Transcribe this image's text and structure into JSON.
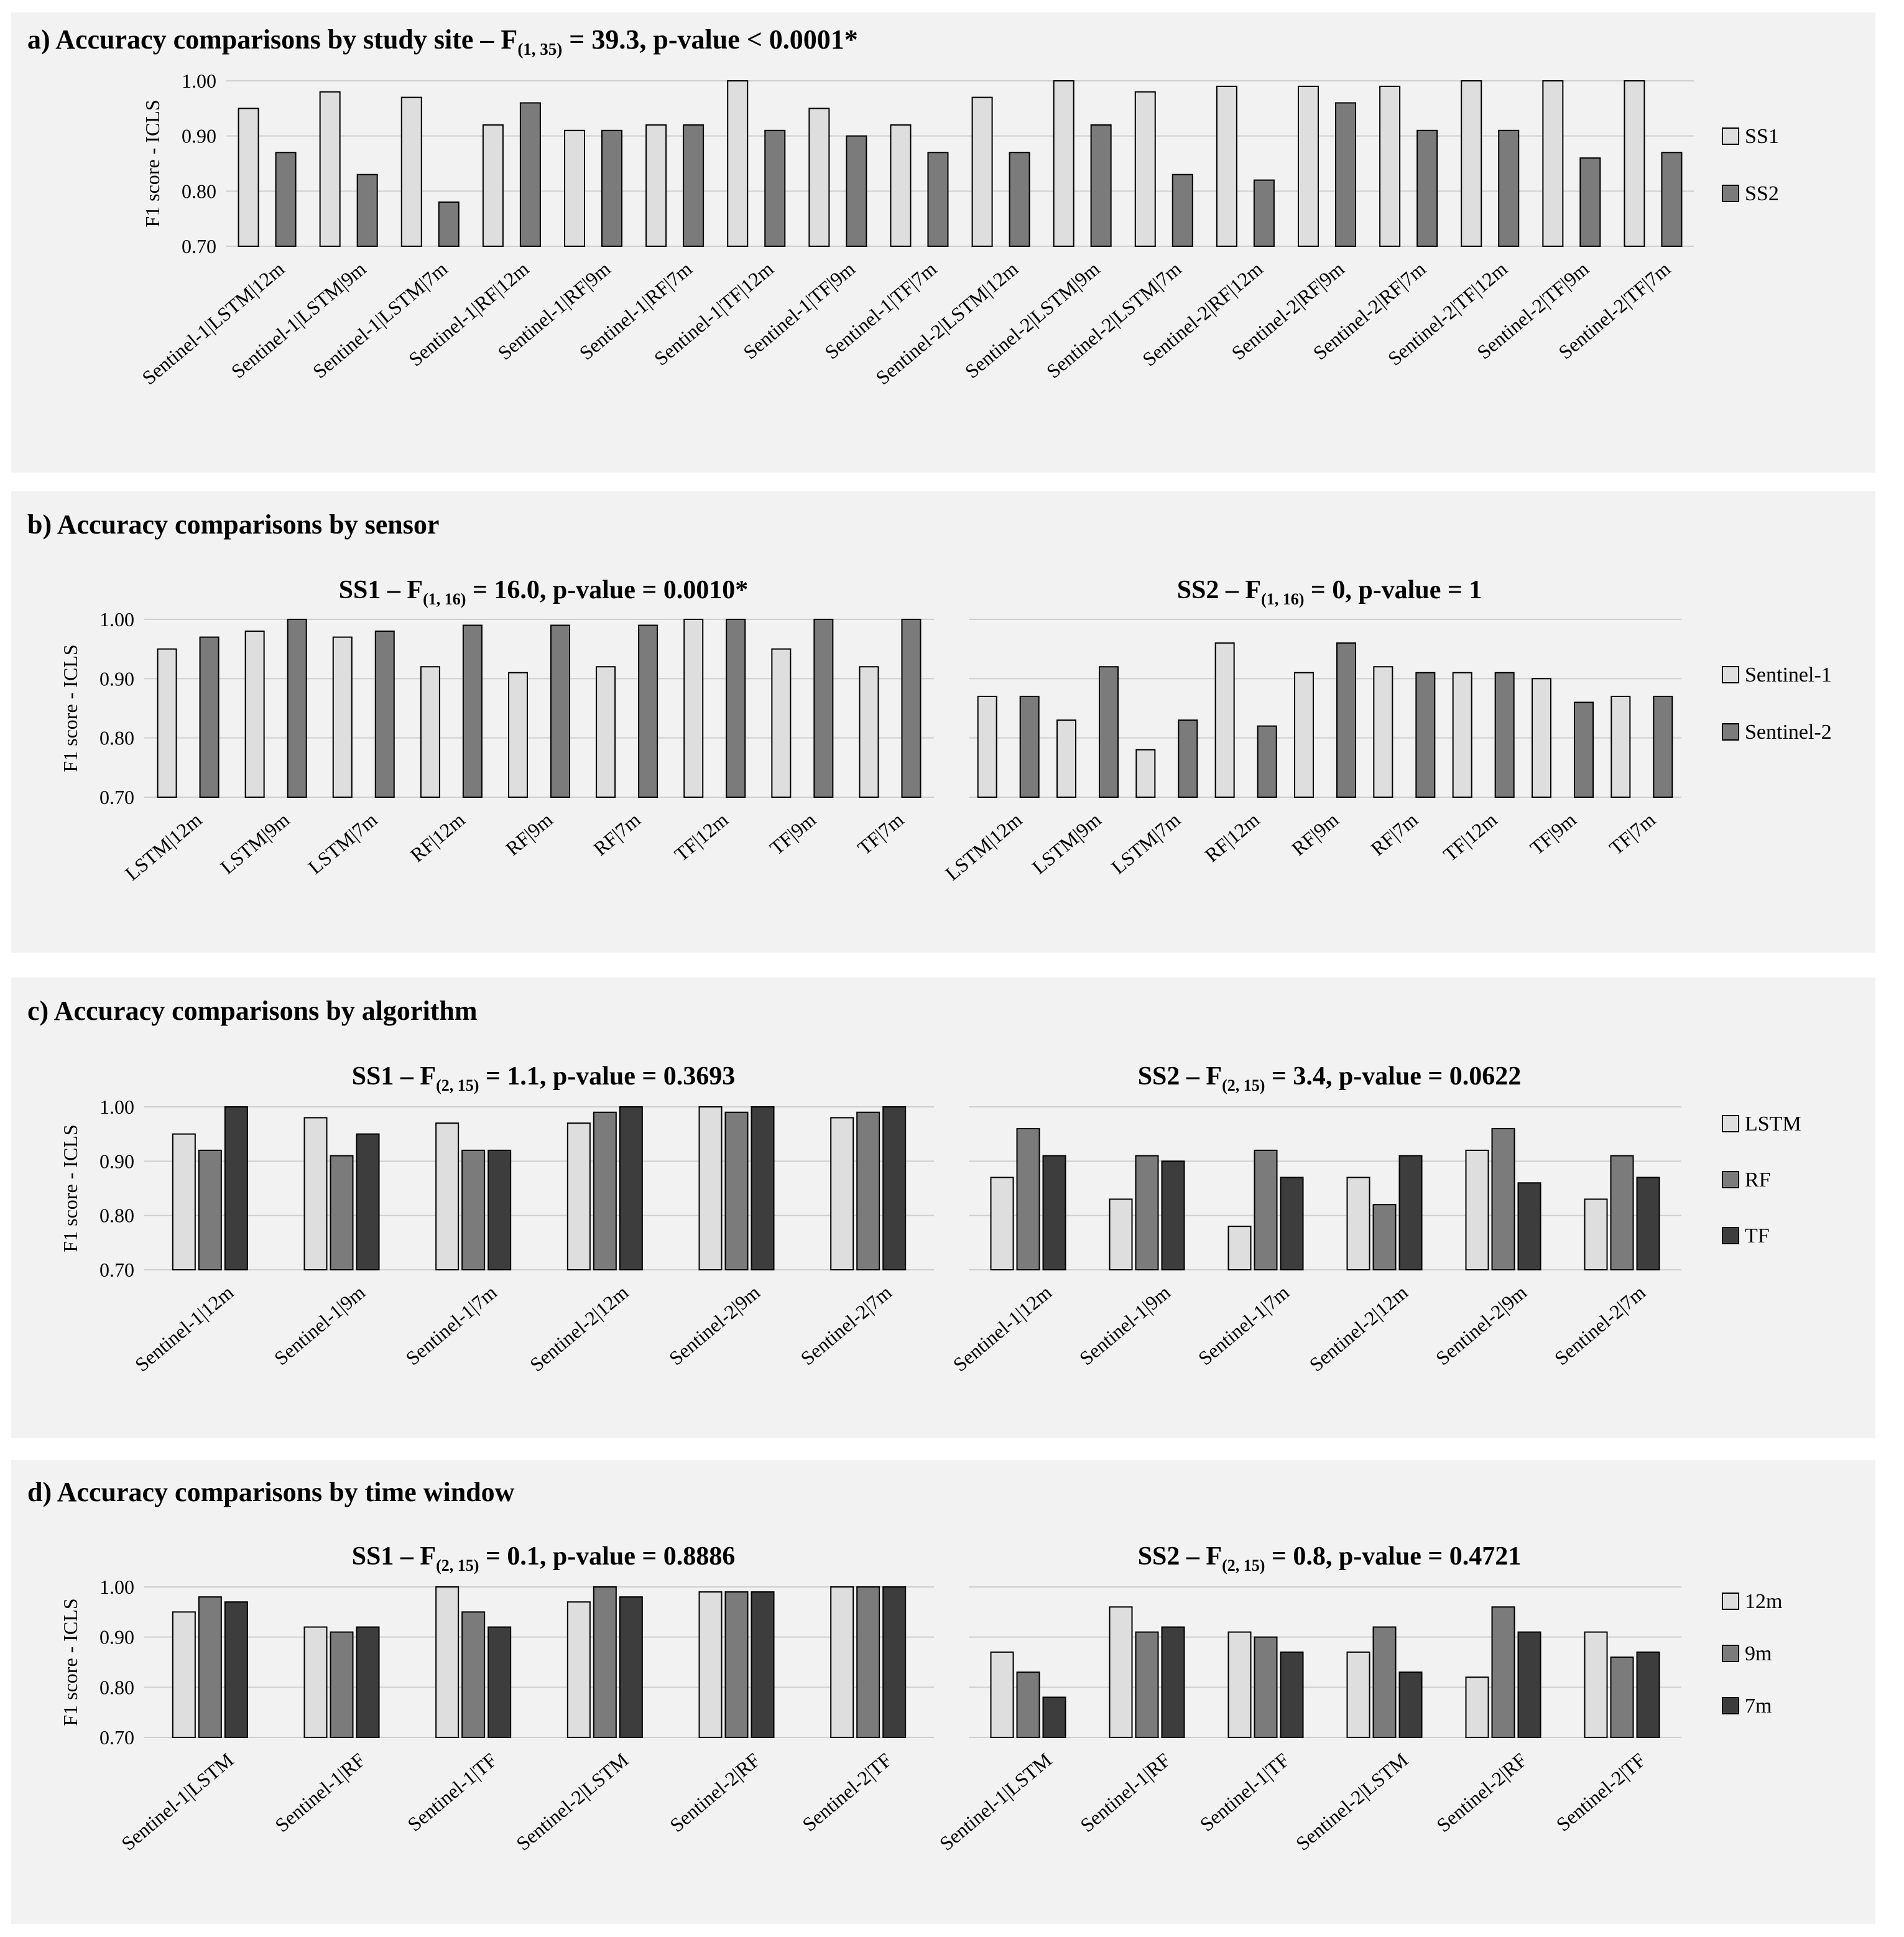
{
  "chart_data": [
    {
      "type": "bar",
      "title_prefix": "a) Accuracy comparisons by study site – F",
      "title_sub": "(1, 35)",
      "title_suffix": " = 39.3, p-value < 0.0001*",
      "ylabel": "F1 score - ICLS",
      "ylim": [
        0.7,
        1.0
      ],
      "yticks": [
        "1.00",
        "0.90",
        "0.80",
        "0.70"
      ],
      "categories": [
        "Sentinel-1|LSTM|12m",
        "Sentinel-1|LSTM|9m",
        "Sentinel-1|LSTM|7m",
        "Sentinel-1|RF|12m",
        "Sentinel-1|RF|9m",
        "Sentinel-1|RF|7m",
        "Sentinel-1|TF|12m",
        "Sentinel-1|TF|9m",
        "Sentinel-1|TF|7m",
        "Sentinel-2|LSTM|12m",
        "Sentinel-2|LSTM|9m",
        "Sentinel-2|LSTM|7m",
        "Sentinel-2|RF|12m",
        "Sentinel-2|RF|9m",
        "Sentinel-2|RF|7m",
        "Sentinel-2|TF|12m",
        "Sentinel-2|TF|9m",
        "Sentinel-2|TF|7m"
      ],
      "series": [
        {
          "name": "SS1",
          "color": "#dedede",
          "values": [
            0.95,
            0.98,
            0.97,
            0.92,
            0.91,
            0.92,
            1.0,
            0.95,
            0.92,
            0.97,
            1.0,
            0.98,
            0.99,
            0.99,
            0.99,
            1.0,
            1.0,
            1.0
          ]
        },
        {
          "name": "SS2",
          "color": "#7b7b7b",
          "values": [
            0.87,
            0.83,
            0.78,
            0.96,
            0.91,
            0.92,
            0.91,
            0.9,
            0.87,
            0.87,
            0.92,
            0.83,
            0.82,
            0.96,
            0.91,
            0.91,
            0.86,
            0.87
          ]
        }
      ]
    },
    {
      "type": "bar",
      "title": "b) Accuracy comparisons by sensor",
      "ylabel": "F1 score - ICLS",
      "ylim": [
        0.7,
        1.0
      ],
      "yticks": [
        "1.00",
        "0.90",
        "0.80",
        "0.70"
      ],
      "legend": [
        "Sentinel-1",
        "Sentinel-2"
      ],
      "colors": [
        "#dedede",
        "#7b7b7b"
      ],
      "subplots": [
        {
          "title_prefix": "SS1 – F",
          "title_sub": "(1, 16)",
          "title_suffix": " = 16.0, p-value = 0.0010*",
          "categories": [
            "LSTM|12m",
            "LSTM|9m",
            "LSTM|7m",
            "RF|12m",
            "RF|9m",
            "RF|7m",
            "TF|12m",
            "TF|9m",
            "TF|7m"
          ],
          "series": [
            {
              "name": "Sentinel-1",
              "values": [
                0.95,
                0.98,
                0.97,
                0.92,
                0.91,
                0.92,
                1.0,
                0.95,
                0.92
              ]
            },
            {
              "name": "Sentinel-2",
              "values": [
                0.97,
                1.0,
                0.98,
                0.99,
                0.99,
                0.99,
                1.0,
                1.0,
                1.0
              ]
            }
          ]
        },
        {
          "title_prefix": "SS2 – F",
          "title_sub": "(1, 16)",
          "title_suffix": " = 0, p-value = 1",
          "categories": [
            "LSTM|12m",
            "LSTM|9m",
            "LSTM|7m",
            "RF|12m",
            "RF|9m",
            "RF|7m",
            "TF|12m",
            "TF|9m",
            "TF|7m"
          ],
          "series": [
            {
              "name": "Sentinel-1",
              "values": [
                0.87,
                0.83,
                0.78,
                0.96,
                0.91,
                0.92,
                0.91,
                0.9,
                0.87
              ]
            },
            {
              "name": "Sentinel-2",
              "values": [
                0.87,
                0.92,
                0.83,
                0.82,
                0.96,
                0.91,
                0.91,
                0.86,
                0.87
              ]
            }
          ]
        }
      ]
    },
    {
      "type": "bar",
      "title": "c) Accuracy comparisons by algorithm",
      "ylabel": "F1 score - ICLS",
      "ylim": [
        0.7,
        1.0
      ],
      "yticks": [
        "1.00",
        "0.90",
        "0.80",
        "0.70"
      ],
      "legend": [
        "LSTM",
        "RF",
        "TF"
      ],
      "colors": [
        "#dedede",
        "#7b7b7b",
        "#3d3d3d"
      ],
      "subplots": [
        {
          "title_prefix": "SS1 – F",
          "title_sub": "(2, 15)",
          "title_suffix": " = 1.1, p-value = 0.3693",
          "categories": [
            "Sentinel-1|12m",
            "Sentinel-1|9m",
            "Sentinel-1|7m",
            "Sentinel-2|12m",
            "Sentinel-2|9m",
            "Sentinel-2|7m"
          ],
          "series": [
            {
              "name": "LSTM",
              "values": [
                0.95,
                0.98,
                0.97,
                0.97,
                1.0,
                0.98
              ]
            },
            {
              "name": "RF",
              "values": [
                0.92,
                0.91,
                0.92,
                0.99,
                0.99,
                0.99
              ]
            },
            {
              "name": "TF",
              "values": [
                1.0,
                0.95,
                0.92,
                1.0,
                1.0,
                1.0
              ]
            }
          ]
        },
        {
          "title_prefix": "SS2 – F",
          "title_sub": "(2, 15)",
          "title_suffix": " = 3.4, p-value = 0.0622",
          "categories": [
            "Sentinel-1|12m",
            "Sentinel-1|9m",
            "Sentinel-1|7m",
            "Sentinel-2|12m",
            "Sentinel-2|9m",
            "Sentinel-2|7m"
          ],
          "series": [
            {
              "name": "LSTM",
              "values": [
                0.87,
                0.83,
                0.78,
                0.87,
                0.92,
                0.83
              ]
            },
            {
              "name": "RF",
              "values": [
                0.96,
                0.91,
                0.92,
                0.82,
                0.96,
                0.91
              ]
            },
            {
              "name": "TF",
              "values": [
                0.91,
                0.9,
                0.87,
                0.91,
                0.86,
                0.87
              ]
            }
          ]
        }
      ]
    },
    {
      "type": "bar",
      "title": "d) Accuracy comparisons by time window",
      "ylabel": "F1 score - ICLS",
      "ylim": [
        0.7,
        1.0
      ],
      "yticks": [
        "1.00",
        "0.90",
        "0.80",
        "0.70"
      ],
      "legend": [
        "12m",
        "9m",
        "7m"
      ],
      "colors": [
        "#dedede",
        "#7b7b7b",
        "#3d3d3d"
      ],
      "subplots": [
        {
          "title_prefix": "SS1 – F",
          "title_sub": "(2, 15)",
          "title_suffix": " = 0.1, p-value = 0.8886",
          "categories": [
            "Sentinel-1|LSTM",
            "Sentinel-1|RF",
            "Sentinel-1|TF",
            "Sentinel-2|LSTM",
            "Sentinel-2|RF",
            "Sentinel-2|TF"
          ],
          "series": [
            {
              "name": "12m",
              "values": [
                0.95,
                0.92,
                1.0,
                0.97,
                0.99,
                1.0
              ]
            },
            {
              "name": "9m",
              "values": [
                0.98,
                0.91,
                0.95,
                1.0,
                0.99,
                1.0
              ]
            },
            {
              "name": "7m",
              "values": [
                0.97,
                0.92,
                0.92,
                0.98,
                0.99,
                1.0
              ]
            }
          ]
        },
        {
          "title_prefix": "SS2 – F",
          "title_sub": "(2, 15)",
          "title_suffix": " = 0.8, p-value = 0.4721",
          "categories": [
            "Sentinel-1|LSTM",
            "Sentinel-1|RF",
            "Sentinel-1|TF",
            "Sentinel-2|LSTM",
            "Sentinel-2|RF",
            "Sentinel-2|TF"
          ],
          "series": [
            {
              "name": "12m",
              "values": [
                0.87,
                0.96,
                0.91,
                0.87,
                0.82,
                0.91
              ]
            },
            {
              "name": "9m",
              "values": [
                0.83,
                0.91,
                0.9,
                0.92,
                0.96,
                0.86
              ]
            },
            {
              "name": "7m",
              "values": [
                0.78,
                0.92,
                0.87,
                0.83,
                0.91,
                0.87
              ]
            }
          ]
        }
      ]
    }
  ]
}
